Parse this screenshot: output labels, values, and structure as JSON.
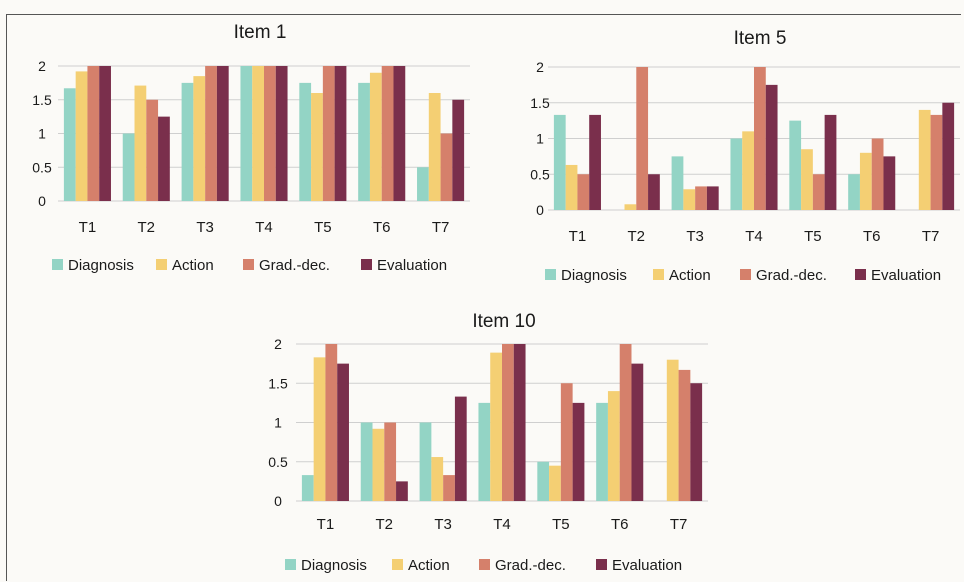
{
  "chart_data": [
    {
      "type": "bar",
      "title": "Item 1",
      "categories": [
        "T1",
        "T2",
        "T3",
        "T4",
        "T5",
        "T6",
        "T7"
      ],
      "ylim": [
        0,
        2
      ],
      "yticks": [
        "0",
        "0.5",
        "1",
        "1.5",
        "2"
      ],
      "series": [
        {
          "name": "Diagnosis",
          "values": [
            1.67,
            1.0,
            1.75,
            2.0,
            1.75,
            1.75,
            0.5
          ]
        },
        {
          "name": "Action",
          "values": [
            1.92,
            1.71,
            1.85,
            2.0,
            1.6,
            1.9,
            1.6
          ]
        },
        {
          "name": "Grad.-dec.",
          "values": [
            2.0,
            1.5,
            2.0,
            2.0,
            2.0,
            2.0,
            1.0
          ]
        },
        {
          "name": "Evaluation",
          "values": [
            2.0,
            1.25,
            2.0,
            2.0,
            2.0,
            2.0,
            1.5
          ]
        }
      ],
      "legend": "bottom"
    },
    {
      "type": "bar",
      "title": "Item 5",
      "categories": [
        "T1",
        "T2",
        "T3",
        "T4",
        "T5",
        "T6",
        "T7"
      ],
      "ylim": [
        0,
        2
      ],
      "yticks": [
        "0",
        "0.5",
        "1",
        "1.5",
        "2"
      ],
      "series": [
        {
          "name": "Diagnosis",
          "values": [
            1.33,
            0,
            0.75,
            1.0,
            1.25,
            0.5,
            0
          ]
        },
        {
          "name": "Action",
          "values": [
            0.63,
            0.08,
            0.29,
            1.1,
            0.85,
            0.8,
            1.4
          ]
        },
        {
          "name": "Grad.-dec.",
          "values": [
            0.5,
            2.0,
            0.33,
            2.0,
            0.5,
            1.0,
            1.33
          ]
        },
        {
          "name": "Evaluation",
          "values": [
            1.33,
            0.5,
            0.33,
            1.75,
            1.33,
            0.75,
            1.5
          ]
        }
      ],
      "legend": "bottom"
    },
    {
      "type": "bar",
      "title": "Item 10",
      "categories": [
        "T1",
        "T2",
        "T3",
        "T4",
        "T5",
        "T6",
        "T7"
      ],
      "ylim": [
        0,
        2
      ],
      "yticks": [
        "0",
        "0.5",
        "1",
        "1.5",
        "2"
      ],
      "series": [
        {
          "name": "Diagnosis",
          "values": [
            0.33,
            1.0,
            1.0,
            1.25,
            0.5,
            1.25,
            0
          ]
        },
        {
          "name": "Action",
          "values": [
            1.83,
            0.92,
            0.56,
            1.89,
            0.45,
            1.4,
            1.8
          ]
        },
        {
          "name": "Grad.-dec.",
          "values": [
            2.0,
            1.0,
            0.33,
            2.0,
            1.5,
            2.0,
            1.67
          ]
        },
        {
          "name": "Evaluation",
          "values": [
            1.75,
            0.25,
            1.33,
            2.0,
            1.25,
            1.75,
            1.5
          ]
        }
      ],
      "legend": "bottom"
    }
  ],
  "colors": {
    "Diagnosis": "#93d4c5",
    "Action": "#f4cf73",
    "Grad.-dec.": "#d5806b",
    "Evaluation": "#7a2f4c",
    "grid": "#cfcfcf"
  }
}
